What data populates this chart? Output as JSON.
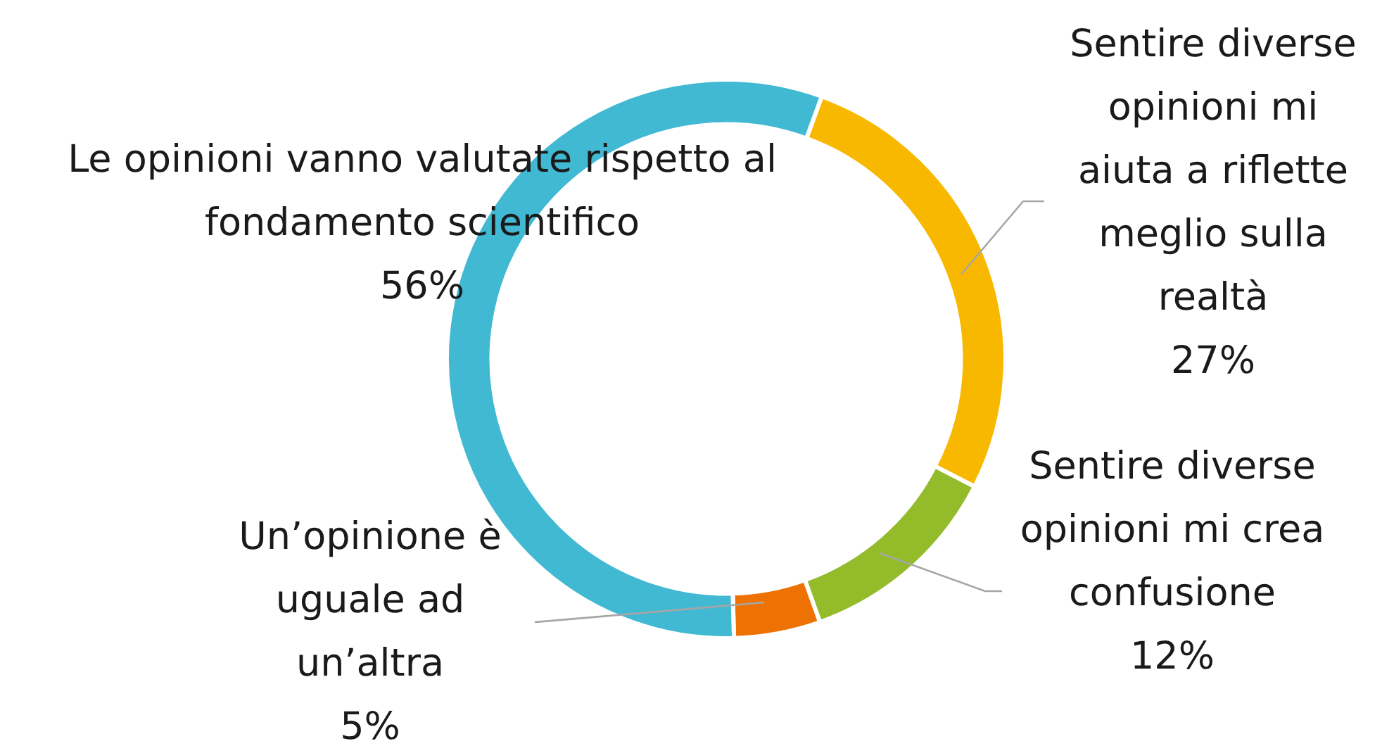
{
  "chart_data": {
    "type": "donut",
    "categories": [
      "Sentire diverse opinioni mi aiuta a riflette meglio sulla realtà",
      "Sentire diverse opinioni mi crea confusione",
      "Un’opinione è uguale ad un’altra",
      "Le opinioni vanno valutate rispetto al fondamento scientifico"
    ],
    "values": [
      27,
      12,
      5,
      56
    ],
    "value_labels": [
      "27%",
      "12%",
      "5%",
      "56%"
    ],
    "colors": [
      "#f9b800",
      "#93bb2a",
      "#ee7203",
      "#41b9d3"
    ],
    "legend": false
  }
}
